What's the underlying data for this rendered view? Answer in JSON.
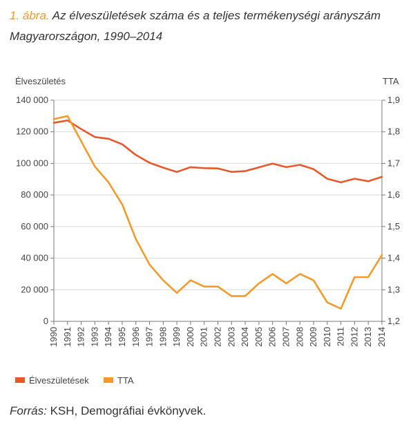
{
  "caption": {
    "figure_number": "1. ábra.",
    "text_line1": "Az élveszületések száma és a teljes termékenységi arányszám",
    "text_line2": "Magyarországon, 1990–2014"
  },
  "source": {
    "label": "Forrás:",
    "text": "KSH, Demográfiai évkönyvek."
  },
  "chart_data": {
    "type": "line",
    "title": "",
    "ylabel_left": "Élveszületés",
    "ylabel_right": "TTA",
    "x": [
      "1990",
      "1991",
      "1992",
      "1993",
      "1994",
      "1995",
      "1996",
      "1997",
      "1998",
      "1999",
      "2000",
      "2001",
      "2002",
      "2003",
      "2004",
      "2005",
      "2006",
      "2007",
      "2008",
      "2009",
      "2010",
      "2011",
      "2012",
      "2013",
      "2014"
    ],
    "y_left_ticks": [
      "0",
      "20 000",
      "40 000",
      "60 000",
      "80 000",
      "100 000",
      "120 000",
      "140 000"
    ],
    "y_right_ticks": [
      "1,2",
      "1,3",
      "1,4",
      "1,5",
      "1,6",
      "1,7",
      "1,8",
      "1,9"
    ],
    "ylim_left": [
      0,
      140000
    ],
    "ylim_right": [
      1.2,
      1.9
    ],
    "grid": true,
    "legend_position": "bottom-left",
    "series": [
      {
        "name": "Élveszületések",
        "axis": "left",
        "color": "#e8582a",
        "values": [
          125700,
          127200,
          121700,
          116700,
          115600,
          112100,
          105300,
          100400,
          97300,
          94600,
          97600,
          97000,
          96800,
          94600,
          95100,
          97500,
          99900,
          97600,
          99100,
          96400,
          90300,
          88000,
          90300,
          88700,
          91500
        ]
      },
      {
        "name": "TTA",
        "axis": "right",
        "color": "#f39a2b",
        "values": [
          1.84,
          1.85,
          1.77,
          1.69,
          1.64,
          1.57,
          1.46,
          1.38,
          1.33,
          1.29,
          1.33,
          1.31,
          1.31,
          1.28,
          1.28,
          1.32,
          1.35,
          1.32,
          1.35,
          1.33,
          1.26,
          1.24,
          1.34,
          1.34,
          1.41
        ]
      }
    ]
  }
}
